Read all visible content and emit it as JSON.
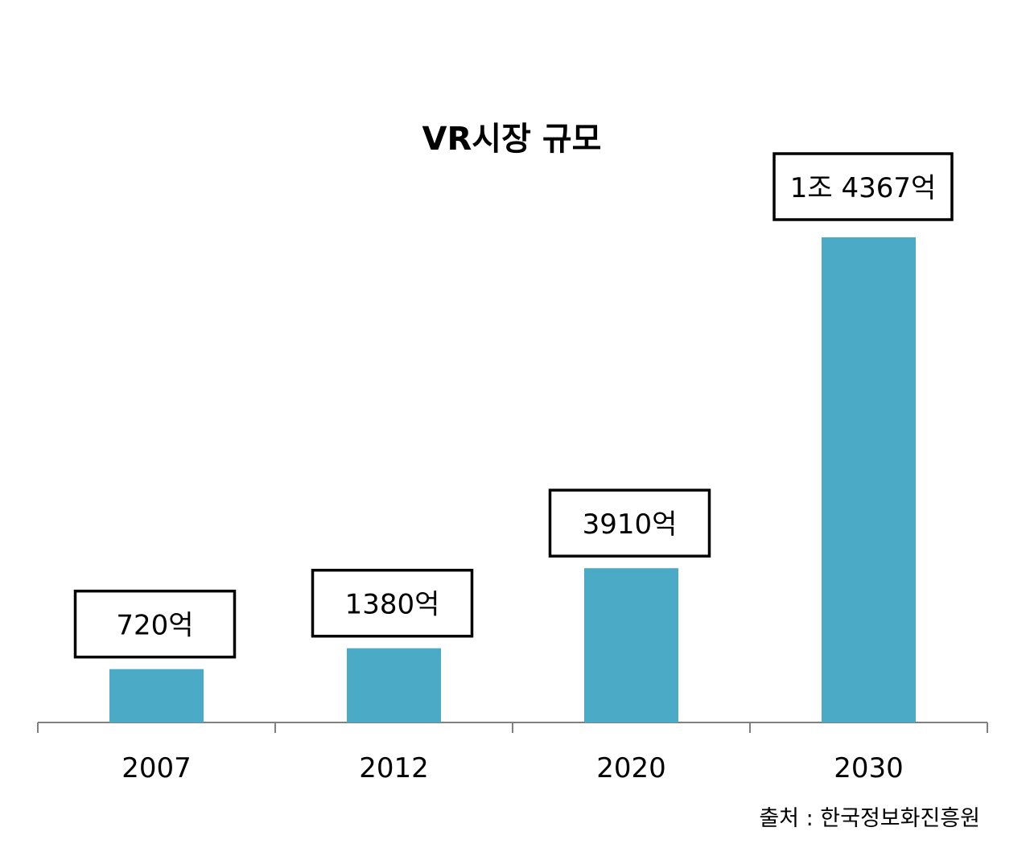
{
  "chart_data": {
    "type": "bar",
    "title": "VR시장 규모",
    "categories": [
      "2007",
      "2012",
      "2020",
      "2030"
    ],
    "values": [
      720,
      1380,
      3910,
      14367
    ],
    "data_labels": [
      "720억",
      "1380억",
      "3910억",
      "1조 4367억"
    ],
    "unit": "억 원",
    "xlabel": "",
    "ylabel": "",
    "ylim": [
      0,
      15000
    ],
    "grid": false,
    "legend": "none",
    "bar_color": "#4BABC6",
    "source": "출처 : 한국정보화진흥원"
  }
}
